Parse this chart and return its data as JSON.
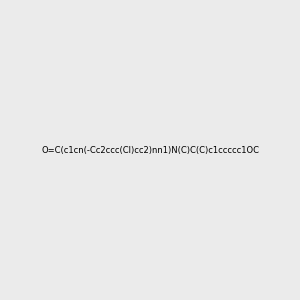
{
  "smiles": "O=C(c1cn(-Cc2ccc(Cl)cc2)nn1)N(C)C(C)c1ccccc1OC",
  "title": "",
  "bg_color": "#ebebeb",
  "img_size": [
    300,
    300
  ],
  "atom_colors": {
    "N": [
      0,
      0,
      255
    ],
    "O": [
      255,
      0,
      0
    ],
    "Cl": [
      0,
      200,
      0
    ]
  }
}
